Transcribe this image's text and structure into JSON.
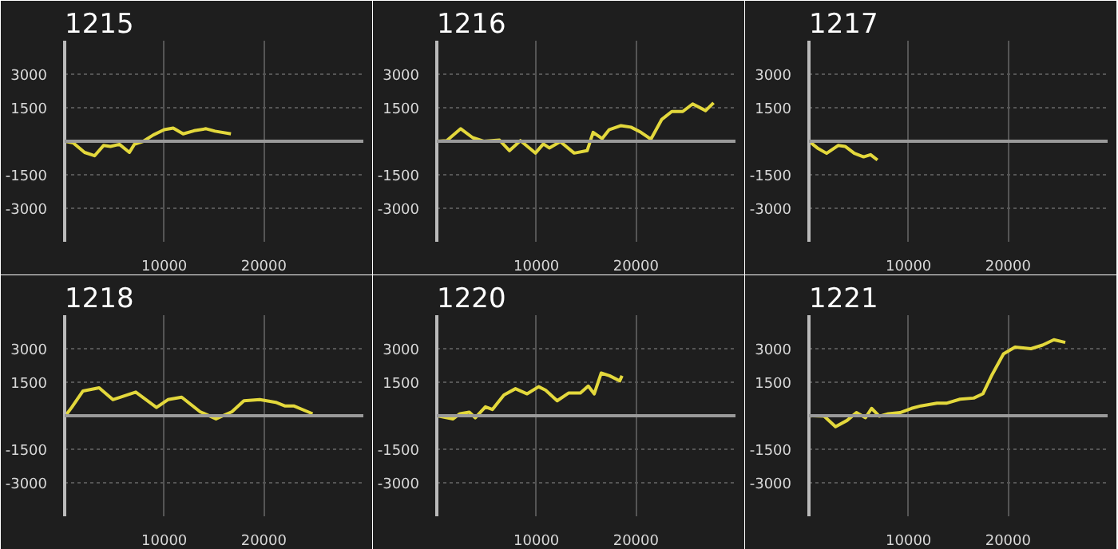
{
  "chart_data": [
    {
      "type": "line",
      "title": "1215",
      "xlim": [
        0,
        30000
      ],
      "ylim": [
        -4500,
        4500
      ],
      "xticks": [
        10000,
        20000
      ],
      "yticks": [
        -3000,
        -1500,
        1500,
        3000
      ],
      "grid": true,
      "ref_lines": [
        {
          "axis": "y",
          "value": 0,
          "color": "#9a9a9a"
        }
      ],
      "x": [
        0,
        850,
        2000,
        3000,
        3900,
        4600,
        5500,
        6500,
        7000,
        7900,
        8900,
        10000,
        10900,
        11900,
        13000,
        14200,
        15100,
        16700
      ],
      "series": [
        {
          "color": "#e3d83c",
          "values": [
            0,
            -70,
            -500,
            -650,
            -190,
            -230,
            -140,
            -500,
            -140,
            0,
            280,
            520,
            590,
            330,
            470,
            560,
            450,
            330
          ]
        }
      ]
    },
    {
      "type": "line",
      "title": "1216",
      "xlim": [
        0,
        30000
      ],
      "ylim": [
        -4500,
        4500
      ],
      "xticks": [
        10000,
        20000
      ],
      "yticks": [
        -3000,
        -1500,
        1500,
        3000
      ],
      "grid": true,
      "ref_lines": [
        {
          "axis": "y",
          "value": 0,
          "color": "#9a9a9a"
        }
      ],
      "x": [
        0,
        1000,
        2400,
        3600,
        4700,
        6300,
        7300,
        8400,
        9900,
        10700,
        11300,
        12400,
        13800,
        15100,
        15700,
        16600,
        17300,
        18500,
        19500,
        20500,
        21500,
        22600,
        23600,
        24700,
        25700,
        27000,
        27800
      ],
      "series": [
        {
          "color": "#e3d83c",
          "values": [
            0,
            30,
            560,
            160,
            0,
            50,
            -420,
            30,
            -530,
            -120,
            -300,
            -20,
            -530,
            -420,
            400,
            120,
            510,
            700,
            630,
            400,
            90,
            980,
            1330,
            1330,
            1670,
            1370,
            1720
          ]
        }
      ]
    },
    {
      "type": "line",
      "title": "1217",
      "xlim": [
        0,
        30000
      ],
      "ylim": [
        -4500,
        4500
      ],
      "xticks": [
        10000,
        20000
      ],
      "yticks": [
        -3000,
        -1500,
        1500,
        3000
      ],
      "grid": true,
      "ref_lines": [
        {
          "axis": "y",
          "value": 0,
          "color": "#9a9a9a"
        }
      ],
      "x": [
        0,
        840,
        1770,
        2930,
        3630,
        4560,
        5490,
        6190,
        6880
      ],
      "series": [
        {
          "color": "#e3d83c",
          "values": [
            0,
            -300,
            -540,
            -190,
            -230,
            -540,
            -700,
            -600,
            -840
          ]
        }
      ]
    },
    {
      "type": "line",
      "title": "1218",
      "xlim": [
        0,
        30000
      ],
      "ylim": [
        -4500,
        4500
      ],
      "xticks": [
        10000,
        20000
      ],
      "yticks": [
        -3000,
        -1500,
        1500,
        3000
      ],
      "grid": true,
      "ref_lines": [
        {
          "axis": "y",
          "value": 0,
          "color": "#9a9a9a"
        }
      ],
      "x": [
        0,
        700,
        1840,
        3460,
        4840,
        7140,
        9220,
        10370,
        11750,
        13600,
        15200,
        16800,
        18000,
        19600,
        21200,
        22100,
        23000,
        24900
      ],
      "series": [
        {
          "color": "#e3d83c",
          "values": [
            -50,
            370,
            1110,
            1250,
            720,
            1060,
            370,
            720,
            830,
            180,
            -140,
            180,
            670,
            720,
            600,
            440,
            440,
            90
          ]
        }
      ]
    },
    {
      "type": "line",
      "title": "1220",
      "xlim": [
        0,
        30000
      ],
      "ylim": [
        -4500,
        4500
      ],
      "xticks": [
        10000,
        20000
      ],
      "yticks": [
        -3000,
        -1500,
        1500,
        3000
      ],
      "grid": true,
      "ref_lines": [
        {
          "axis": "y",
          "value": 0,
          "color": "#9a9a9a"
        }
      ],
      "x": [
        0,
        1630,
        2330,
        3260,
        3860,
        4880,
        5580,
        6740,
        7900,
        9070,
        10230,
        10930,
        12090,
        13260,
        14420,
        15210,
        15810,
        16510,
        17350,
        18370,
        18600
      ],
      "series": [
        {
          "color": "#e3d83c",
          "values": [
            0,
            -140,
            90,
            160,
            -90,
            400,
            280,
            930,
            1210,
            980,
            1300,
            1140,
            670,
            1020,
            1020,
            1330,
            980,
            1910,
            1790,
            1560,
            1790
          ]
        }
      ]
    },
    {
      "type": "line",
      "title": "1221",
      "xlim": [
        0,
        30000
      ],
      "ylim": [
        -4500,
        4500
      ],
      "xticks": [
        10000,
        20000
      ],
      "yticks": [
        -3000,
        -1500,
        1500,
        3000
      ],
      "grid": true,
      "ref_lines": [
        {
          "axis": "y",
          "value": 0,
          "color": "#9a9a9a"
        }
      ],
      "x": [
        0,
        1520,
        2670,
        3830,
        4770,
        5680,
        6290,
        7070,
        7980,
        9160,
        10300,
        11240,
        12860,
        13800,
        15180,
        16550,
        17470,
        18400,
        19540,
        20700,
        22300,
        23460,
        24600,
        25750
      ],
      "series": [
        {
          "color": "#e3d83c",
          "values": [
            0,
            -20,
            -490,
            -210,
            140,
            -90,
            330,
            -20,
            90,
            140,
            330,
            440,
            560,
            560,
            740,
            790,
            980,
            1840,
            2770,
            3070,
            3000,
            3160,
            3400,
            3280
          ]
        }
      ]
    }
  ]
}
